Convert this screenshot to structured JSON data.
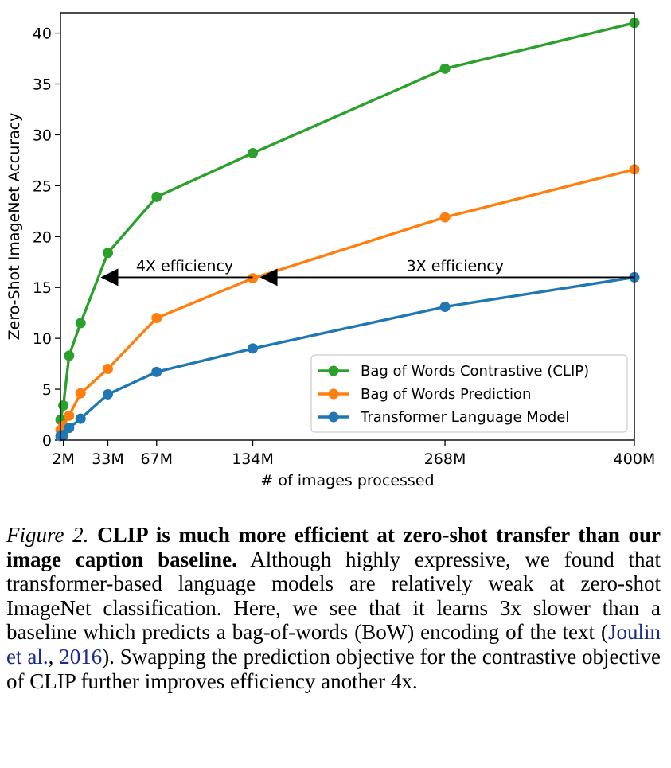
{
  "chart_data": {
    "type": "line",
    "xlabel": "# of images processed",
    "ylabel": "Zero-Shot ImageNet Accuracy",
    "xlim": [
      0,
      400
    ],
    "ylim": [
      0,
      42
    ],
    "grid": false,
    "x_ticks": [
      {
        "value": 2,
        "label": "2M"
      },
      {
        "value": 33,
        "label": "33M"
      },
      {
        "value": 67,
        "label": "67M"
      },
      {
        "value": 134,
        "label": "134M"
      },
      {
        "value": 268,
        "label": "268M"
      },
      {
        "value": 400,
        "label": "400M"
      }
    ],
    "y_ticks": [
      0,
      5,
      10,
      15,
      20,
      25,
      30,
      35,
      40
    ],
    "legend_position": "lower-right",
    "series": [
      {
        "name": "Bag of Words Contrastive (CLIP)",
        "color": "#2ca02c",
        "x": [
          0,
          2,
          6,
          14,
          33,
          67,
          134,
          268,
          400
        ],
        "values": [
          2.0,
          3.4,
          8.3,
          11.5,
          18.4,
          23.9,
          28.2,
          36.5,
          41.0
        ]
      },
      {
        "name": "Bag of Words Prediction",
        "color": "#ff7f0e",
        "x": [
          0,
          2,
          6,
          14,
          33,
          67,
          134,
          268,
          400
        ],
        "values": [
          1.0,
          1.4,
          2.4,
          4.6,
          7.0,
          12.0,
          15.9,
          21.9,
          26.6
        ]
      },
      {
        "name": "Transformer Language Model",
        "color": "#1f77b4",
        "x": [
          0,
          2,
          6,
          14,
          33,
          67,
          134,
          268,
          400
        ],
        "values": [
          0.4,
          0.5,
          1.2,
          2.1,
          4.5,
          6.7,
          9.0,
          13.1,
          16.0
        ]
      }
    ],
    "annotations": [
      {
        "text": "4X efficiency",
        "from_x": 134,
        "to_x": 28,
        "y": 16
      },
      {
        "text": "3X efficiency",
        "from_x": 400,
        "to_x": 139,
        "y": 16
      }
    ]
  },
  "caption": {
    "figure_label": "Figure 2.",
    "bold_text": "CLIP is much more efficient at zero-shot transfer than our image caption baseline.",
    "body_before_cite": "Although highly expressive, we found that transformer-based language models are relatively weak at zero-shot ImageNet classification. Here, we see that it learns 3x slower than a baseline which predicts a bag-of-words (BoW) encoding of the text (",
    "cite_authors": "Joulin et al.",
    "cite_sep": ", ",
    "cite_year": "2016",
    "body_after_cite": "). Swapping the prediction objective for the contrastive objective of CLIP further improves efficiency another 4x."
  }
}
